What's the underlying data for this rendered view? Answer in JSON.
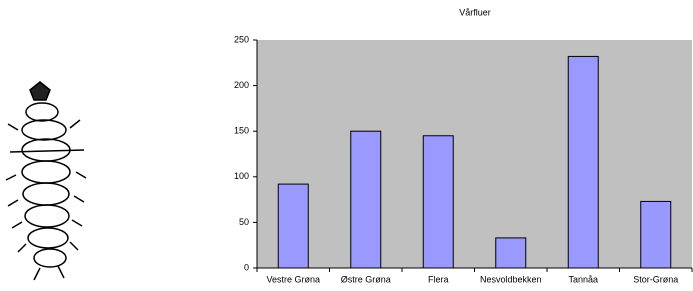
{
  "chart_data": {
    "type": "bar",
    "title": "Vårfluer",
    "categories": [
      "Vestre Grøna",
      "Østre Grøna",
      "Flera",
      "Nesvoldbekken",
      "Tannåa",
      "Stor-Grøna"
    ],
    "values": [
      92,
      150,
      145,
      33,
      232,
      73
    ],
    "color": "#9999ff",
    "ylim": [
      0,
      250
    ],
    "yticks": [
      0,
      50,
      100,
      150,
      200,
      250
    ],
    "grid": false
  }
}
